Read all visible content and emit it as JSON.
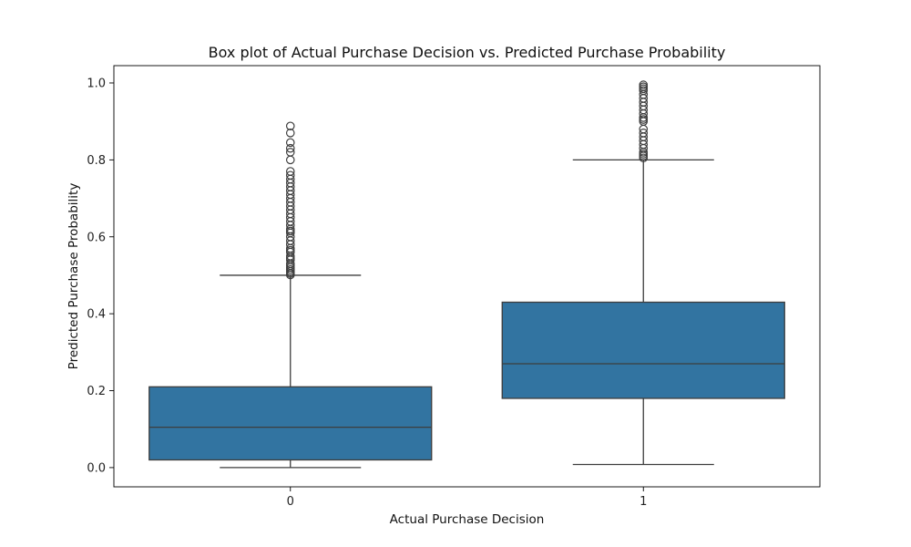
{
  "chart_data": {
    "type": "box",
    "title": "Box plot of Actual Purchase Decision vs. Predicted Purchase Probability",
    "xlabel": "Actual Purchase Decision",
    "ylabel": "Predicted Purchase Probability",
    "categories": [
      "0",
      "1"
    ],
    "ylim": [
      -0.05,
      1.045
    ],
    "yticks": [
      0.0,
      0.2,
      0.4,
      0.6,
      0.8,
      1.0
    ],
    "ytick_labels": [
      "0.0",
      "0.2",
      "0.4",
      "0.6",
      "0.8",
      "1.0"
    ],
    "grid": false,
    "box_color": "#3274a1",
    "line_color": "#3d3d3d",
    "boxes": [
      {
        "category": "0",
        "whisker_low": 0.0,
        "q1": 0.02,
        "median": 0.105,
        "q3": 0.21,
        "whisker_high": 0.5,
        "outliers": [
          0.501,
          0.505,
          0.51,
          0.515,
          0.52,
          0.525,
          0.53,
          0.54,
          0.545,
          0.55,
          0.56,
          0.565,
          0.57,
          0.58,
          0.59,
          0.6,
          0.61,
          0.615,
          0.62,
          0.63,
          0.64,
          0.65,
          0.66,
          0.67,
          0.68,
          0.69,
          0.7,
          0.71,
          0.72,
          0.73,
          0.74,
          0.75,
          0.76,
          0.77,
          0.8,
          0.82,
          0.83,
          0.845,
          0.87,
          0.888
        ]
      },
      {
        "category": "1",
        "whisker_low": 0.008,
        "q1": 0.18,
        "median": 0.27,
        "q3": 0.43,
        "whisker_high": 0.8,
        "outliers": [
          0.805,
          0.81,
          0.815,
          0.82,
          0.83,
          0.84,
          0.85,
          0.86,
          0.87,
          0.88,
          0.9,
          0.905,
          0.91,
          0.92,
          0.93,
          0.94,
          0.95,
          0.96,
          0.97,
          0.98,
          0.985,
          0.99,
          0.995
        ]
      }
    ]
  }
}
